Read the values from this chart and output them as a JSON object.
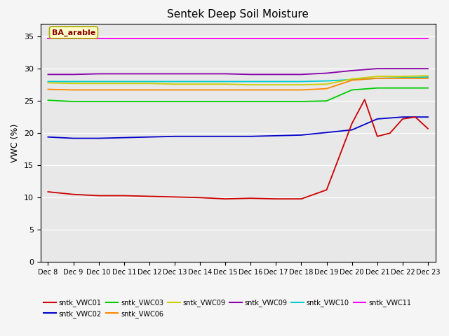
{
  "title": "Sentek Deep Soil Moisture",
  "ylabel": "VWC (%)",
  "ylim": [
    0,
    37
  ],
  "yticks": [
    0,
    5,
    10,
    15,
    20,
    25,
    30,
    35
  ],
  "xlabel_labels": [
    "Dec 8",
    "Dec 9",
    "Dec 10",
    "Dec 11",
    "Dec 12",
    "Dec 13",
    "Dec 14",
    "Dec 15",
    "Dec 16",
    "Dec 17",
    "Dec 18",
    "Dec 19",
    "Dec 20",
    "Dec 21",
    "Dec 22",
    "Dec 23"
  ],
  "annotation_text": "BA_arable",
  "background_color": "#f5f5f5",
  "plot_bg_color": "#e8e8e8",
  "series": {
    "sntk_VWC01": {
      "color": "#cc0000",
      "label": "sntk_VWC01",
      "x": [
        0,
        1,
        2,
        3,
        4,
        5,
        6,
        7,
        8,
        9,
        10,
        11,
        12,
        12.5,
        13,
        13.5,
        14,
        14.5,
        15
      ],
      "y": [
        10.9,
        10.5,
        10.3,
        10.3,
        10.2,
        10.1,
        10.0,
        9.8,
        9.9,
        9.8,
        9.8,
        11.2,
        21.5,
        25.2,
        19.5,
        20.0,
        22.2,
        22.5,
        20.7
      ]
    },
    "sntk_VWC02": {
      "color": "#0000cc",
      "label": "sntk_VWC02",
      "x": [
        0,
        1,
        2,
        3,
        4,
        5,
        6,
        7,
        8,
        9,
        10,
        11,
        12,
        13,
        14,
        15
      ],
      "y": [
        19.4,
        19.2,
        19.2,
        19.3,
        19.4,
        19.5,
        19.5,
        19.5,
        19.5,
        19.6,
        19.7,
        20.1,
        20.5,
        22.2,
        22.5,
        22.5
      ]
    },
    "sntk_VWC03": {
      "color": "#00cc00",
      "label": "sntk_VWC03",
      "x": [
        0,
        1,
        2,
        3,
        4,
        5,
        6,
        7,
        8,
        9,
        10,
        11,
        12,
        13,
        14,
        15
      ],
      "y": [
        25.1,
        24.9,
        24.9,
        24.9,
        24.9,
        24.9,
        24.9,
        24.9,
        24.9,
        24.9,
        24.9,
        25.0,
        26.7,
        27.0,
        27.0,
        27.0
      ]
    },
    "sntk_VWC06": {
      "color": "#ff8800",
      "label": "sntk_VWC06",
      "x": [
        0,
        1,
        2,
        3,
        4,
        5,
        6,
        7,
        8,
        9,
        10,
        11,
        12,
        13,
        14,
        15
      ],
      "y": [
        26.8,
        26.7,
        26.7,
        26.7,
        26.7,
        26.7,
        26.7,
        26.7,
        26.7,
        26.7,
        26.7,
        26.9,
        28.2,
        28.5,
        28.5,
        28.5
      ]
    },
    "sntk_VWC09_yellow": {
      "color": "#cccc00",
      "label": "sntk_VWC09",
      "x": [
        0,
        1,
        2,
        3,
        4,
        5,
        6,
        7,
        8,
        9,
        10,
        11,
        12,
        13,
        14,
        15
      ],
      "y": [
        27.8,
        27.7,
        27.7,
        27.7,
        27.7,
        27.6,
        27.6,
        27.6,
        27.5,
        27.5,
        27.5,
        27.6,
        28.4,
        28.8,
        28.8,
        28.9
      ]
    },
    "sntk_VWC09_purple": {
      "color": "#8800aa",
      "label": "sntk_VWC09",
      "x": [
        0,
        1,
        2,
        3,
        4,
        5,
        6,
        7,
        8,
        9,
        10,
        11,
        12,
        13,
        14,
        15
      ],
      "y": [
        29.1,
        29.1,
        29.2,
        29.2,
        29.2,
        29.2,
        29.2,
        29.2,
        29.1,
        29.1,
        29.1,
        29.3,
        29.7,
        30.0,
        30.0,
        30.0
      ]
    },
    "sntk_VWC10": {
      "color": "#00cccc",
      "label": "sntk_VWC10",
      "x": [
        0,
        1,
        2,
        3,
        4,
        5,
        6,
        7,
        8,
        9,
        10,
        11,
        12,
        13,
        14,
        15
      ],
      "y": [
        28.0,
        28.0,
        28.0,
        28.0,
        28.0,
        28.0,
        28.0,
        28.0,
        28.0,
        28.0,
        28.0,
        28.1,
        28.3,
        28.5,
        28.6,
        28.7
      ]
    },
    "sntk_VWC11": {
      "color": "#ff00ff",
      "label": "sntk_VWC11",
      "x": [
        0,
        1,
        2,
        3,
        4,
        5,
        6,
        7,
        8,
        9,
        10,
        11,
        12,
        13,
        14,
        15
      ],
      "y": [
        34.7,
        34.7,
        34.7,
        34.7,
        34.7,
        34.7,
        34.7,
        34.7,
        34.7,
        34.7,
        34.7,
        34.7,
        34.7,
        34.7,
        34.7,
        34.7
      ]
    }
  },
  "legend_row1": [
    {
      "color": "#cc0000",
      "label": "sntk_VWC01"
    },
    {
      "color": "#0000cc",
      "label": "sntk_VWC02"
    },
    {
      "color": "#00cc00",
      "label": "sntk_VWC03"
    },
    {
      "color": "#ff8800",
      "label": "sntk_VWC06"
    },
    {
      "color": "#cccc00",
      "label": "sntk_VWC09"
    },
    {
      "color": "#8800aa",
      "label": "sntk_VWC09"
    }
  ],
  "legend_row2": [
    {
      "color": "#00cccc",
      "label": "sntk_VWC10"
    },
    {
      "color": "#ff00ff",
      "label": "sntk_VWC11"
    }
  ]
}
